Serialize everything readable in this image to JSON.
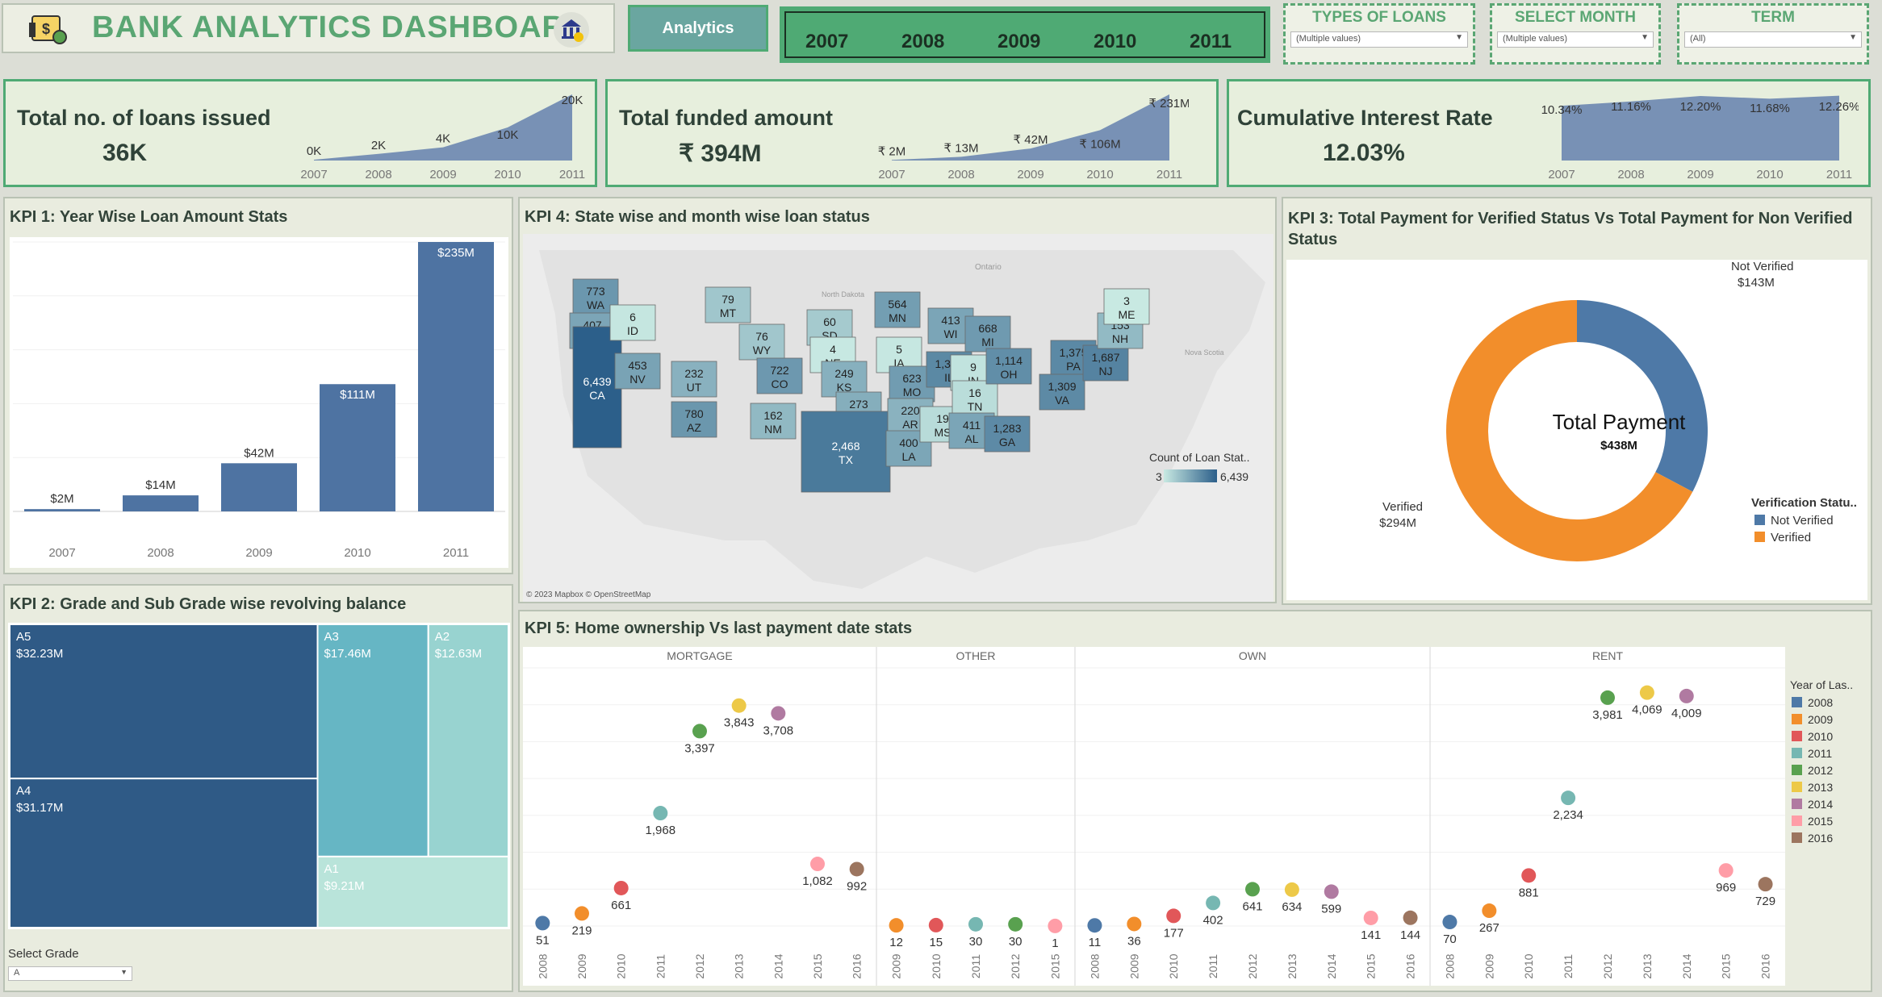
{
  "header": {
    "title": "BANK ANALYTICS DASHBOARD",
    "nav_button": "Analytics"
  },
  "years": [
    "2007",
    "2008",
    "2009",
    "2010",
    "2011"
  ],
  "filters": [
    {
      "label": "TYPES OF LOANS",
      "value": "(Multiple values)"
    },
    {
      "label": "SELECT MONTH",
      "value": "(Multiple values)"
    },
    {
      "label": "TERM",
      "value": "(All)"
    }
  ],
  "cards": [
    {
      "label": "Total no. of loans issued",
      "value": "36K"
    },
    {
      "label": "Total funded amount",
      "value": "₹ 394M"
    },
    {
      "label": "Cumulative Interest Rate",
      "value": "12.03%"
    }
  ],
  "kpi_titles": {
    "kpi1": "KPI 1: Year Wise Loan Amount Stats",
    "kpi2": "KPI 2: Grade and Sub Grade wise revolving balance",
    "kpi3_line1": "KPI 3: Total Payment for Verified Status Vs Total Payment for Non Verified",
    "kpi3_line2": "Status",
    "kpi4": "KPI 4: State wise and month wise loan status",
    "kpi5": "KPI 5: Home ownership Vs last payment date stats"
  },
  "map": {
    "legend_title": "Count of Loan Stat..",
    "legend_min": "3",
    "legend_max": "6,439",
    "credit": "© 2023 Mapbox © OpenStreetMap",
    "basemap_labels": [
      "Ontario",
      "North Dakota",
      "Nova Scotia"
    ]
  },
  "donut_center": {
    "title": "Total Payment",
    "value": "$438M"
  },
  "grade_filter": {
    "label": "Select Grade",
    "value": "A"
  },
  "chart_data": [
    {
      "id": "spark_loans",
      "type": "area",
      "x": [
        "2007",
        "2008",
        "2009",
        "2010",
        "2011"
      ],
      "values": [
        0.25,
        2,
        4,
        10,
        20
      ],
      "labels": [
        "0K",
        "2K",
        "4K",
        "10K",
        "20K"
      ]
    },
    {
      "id": "spark_funded",
      "type": "area",
      "x": [
        "2007",
        "2008",
        "2009",
        "2010",
        "2011"
      ],
      "values": [
        2,
        13,
        42,
        106,
        231
      ],
      "labels": [
        "₹ 2M",
        "₹ 13M",
        "₹ 42M",
        "₹ 106M",
        "₹ 231M"
      ]
    },
    {
      "id": "spark_interest",
      "type": "area",
      "x": [
        "2007",
        "2008",
        "2009",
        "2010",
        "2011"
      ],
      "values": [
        10.34,
        11.16,
        12.2,
        11.68,
        12.26
      ],
      "labels": [
        "10.34%",
        "11.16%",
        "12.20%",
        "11.68%",
        "12.26%"
      ]
    },
    {
      "id": "kpi1",
      "type": "bar",
      "categories": [
        "2007",
        "2008",
        "2009",
        "2010",
        "2011"
      ],
      "values": [
        2,
        14,
        42,
        111,
        235
      ],
      "labels": [
        "$2M",
        "$14M",
        "$42M",
        "$111M",
        "$235M"
      ],
      "ylim": [
        0,
        235
      ]
    },
    {
      "id": "kpi2",
      "type": "treemap",
      "items": [
        {
          "name": "A5",
          "value": 32.23,
          "label": "$32.23M",
          "color": "#2f5a86"
        },
        {
          "name": "A4",
          "value": 31.17,
          "label": "$31.17M",
          "color": "#2f5a86"
        },
        {
          "name": "A3",
          "value": 17.46,
          "label": "$17.46M",
          "color": "#66b6c4"
        },
        {
          "name": "A2",
          "value": 12.63,
          "label": "$12.63M",
          "color": "#98d3d0"
        },
        {
          "name": "A1",
          "value": 9.21,
          "label": "$9.21M",
          "color": "#b9e4da"
        }
      ]
    },
    {
      "id": "kpi3",
      "type": "pie",
      "slices": [
        {
          "name": "Not Verified",
          "value": 143,
          "label": "$143M",
          "color": "#4e79a7"
        },
        {
          "name": "Verified",
          "value": 294,
          "label": "$294M",
          "color": "#f28e2b"
        }
      ],
      "legend_title": "Verification Statu.."
    },
    {
      "id": "kpi4",
      "type": "map",
      "states": [
        {
          "state": "WA",
          "value": 773
        },
        {
          "state": "OR",
          "value": 407
        },
        {
          "state": "CA",
          "value": 6439
        },
        {
          "state": "ID",
          "value": 6
        },
        {
          "state": "NV",
          "value": 453
        },
        {
          "state": "MT",
          "value": 79
        },
        {
          "state": "WY",
          "value": 76
        },
        {
          "state": "UT",
          "value": 232
        },
        {
          "state": "CO",
          "value": 722
        },
        {
          "state": "AZ",
          "value": 780
        },
        {
          "state": "NM",
          "value": 162
        },
        {
          "state": "SD",
          "value": 60
        },
        {
          "state": "NE",
          "value": 4
        },
        {
          "state": "KS",
          "value": 249
        },
        {
          "state": "OK",
          "value": 273
        },
        {
          "state": "TX",
          "value": 2468
        },
        {
          "state": "MN",
          "value": 564
        },
        {
          "state": "IA",
          "value": 5
        },
        {
          "state": "MO",
          "value": 623
        },
        {
          "state": "AR",
          "value": 220
        },
        {
          "state": "LA",
          "value": 400
        },
        {
          "state": "WI",
          "value": 413
        },
        {
          "state": "IL",
          "value": 1384
        },
        {
          "state": "MS",
          "value": 19
        },
        {
          "state": "MI",
          "value": 668
        },
        {
          "state": "IN",
          "value": 9
        },
        {
          "state": "TN",
          "value": 16
        },
        {
          "state": "AL",
          "value": 411
        },
        {
          "state": "OH",
          "value": 1114
        },
        {
          "state": "GA",
          "value": 1283
        },
        {
          "state": "PA",
          "value": 1375
        },
        {
          "state": "VA",
          "value": 1309
        },
        {
          "state": "NJ",
          "value": 1687
        },
        {
          "state": "NH",
          "value": 153
        },
        {
          "state": "ME",
          "value": 3
        }
      ]
    },
    {
      "id": "kpi5",
      "type": "scatter",
      "legend_title": "Year of Las..",
      "legend": [
        {
          "year": "2008",
          "color": "#4e79a7"
        },
        {
          "year": "2009",
          "color": "#f28e2b"
        },
        {
          "year": "2010",
          "color": "#e15759"
        },
        {
          "year": "2011",
          "color": "#76b7b2"
        },
        {
          "year": "2012",
          "color": "#59a14f"
        },
        {
          "year": "2013",
          "color": "#edc948"
        },
        {
          "year": "2014",
          "color": "#b07aa1"
        },
        {
          "year": "2015",
          "color": "#ff9da7"
        },
        {
          "year": "2016",
          "color": "#9c755f"
        }
      ],
      "ylim": [
        0,
        4500
      ],
      "groups": [
        {
          "name": "MORTGAGE",
          "points": [
            {
              "x": "2008",
              "y": 51
            },
            {
              "x": "2009",
              "y": 219
            },
            {
              "x": "2010",
              "y": 661
            },
            {
              "x": "2011",
              "y": 1968
            },
            {
              "x": "2012",
              "y": 3397
            },
            {
              "x": "2013",
              "y": 3843
            },
            {
              "x": "2014",
              "y": 3708
            },
            {
              "x": "2015",
              "y": 1082
            },
            {
              "x": "2016",
              "y": 992
            }
          ]
        },
        {
          "name": "OTHER",
          "points": [
            {
              "x": "2009",
              "y": 12
            },
            {
              "x": "2010",
              "y": 15
            },
            {
              "x": "2011",
              "y": 30
            },
            {
              "x": "2012",
              "y": 30
            },
            {
              "x": "2015",
              "y": 1
            }
          ]
        },
        {
          "name": "OWN",
          "points": [
            {
              "x": "2008",
              "y": 11
            },
            {
              "x": "2009",
              "y": 36
            },
            {
              "x": "2010",
              "y": 177
            },
            {
              "x": "2011",
              "y": 402
            },
            {
              "x": "2012",
              "y": 641
            },
            {
              "x": "2013",
              "y": 634
            },
            {
              "x": "2014",
              "y": 599
            },
            {
              "x": "2015",
              "y": 141
            },
            {
              "x": "2016",
              "y": 144
            }
          ]
        },
        {
          "name": "RENT",
          "points": [
            {
              "x": "2008",
              "y": 70
            },
            {
              "x": "2009",
              "y": 267
            },
            {
              "x": "2010",
              "y": 881
            },
            {
              "x": "2011",
              "y": 2234
            },
            {
              "x": "2012",
              "y": 3981
            },
            {
              "x": "2013",
              "y": 4069
            },
            {
              "x": "2014",
              "y": 4009
            },
            {
              "x": "2015",
              "y": 969
            },
            {
              "x": "2016",
              "y": 729
            }
          ]
        }
      ]
    }
  ]
}
